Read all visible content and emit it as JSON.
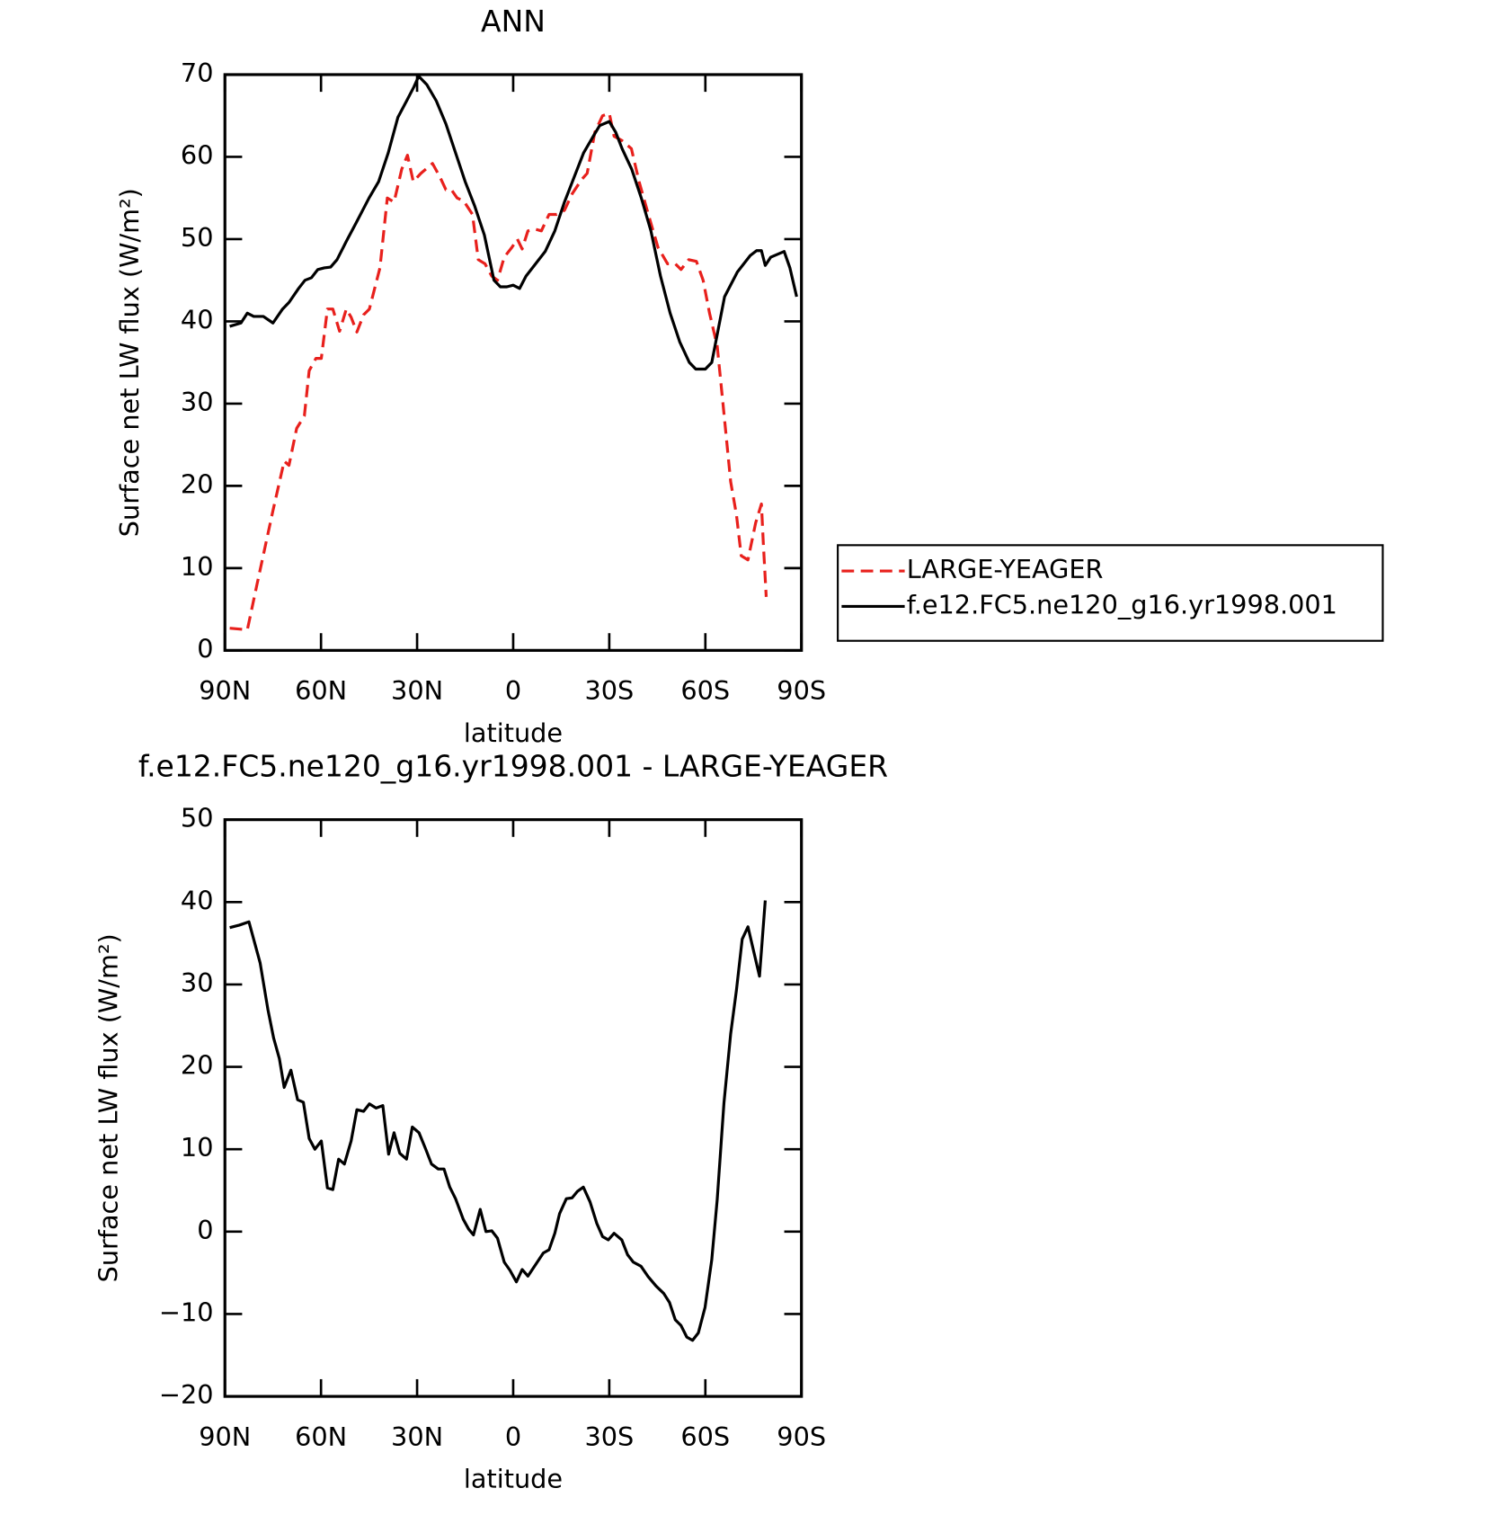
{
  "chart_data": [
    {
      "type": "line",
      "title": "ANN",
      "x_label": "latitude",
      "y_label": "Surface net LW flux (W/m²)",
      "xlim": [
        90,
        -90
      ],
      "xticks": [
        {
          "value": 90,
          "label": "90N"
        },
        {
          "value": 60,
          "label": "60N"
        },
        {
          "value": 30,
          "label": "30N"
        },
        0,
        {
          "value": -30,
          "label": "30S"
        },
        {
          "value": -60,
          "label": "60S"
        },
        {
          "value": -90,
          "label": "90S"
        }
      ],
      "ylim": [
        0,
        70
      ],
      "yticks": [
        0,
        10,
        20,
        30,
        40,
        50,
        60,
        70
      ],
      "legend": "right",
      "series": [
        {
          "name": "LARGE-YEAGER",
          "color": "#e8201c",
          "line_style": "dashed",
          "x": [
            88.5,
            83,
            80,
            75,
            71.5,
            70,
            67.6,
            65.2,
            63.7,
            61.6,
            59.9,
            58,
            56.3,
            54.2,
            52.1,
            50.6,
            48.8,
            46.7,
            44.9,
            41.6,
            39.3,
            37.2,
            34.8,
            33,
            31.2,
            28.8,
            25.2,
            22.8,
            21,
            19.3,
            17.5,
            15.4,
            12.7,
            10.9,
            8.8,
            6.7,
            4.9,
            2.8,
            0.4,
            -1.3,
            -2.8,
            -4.6,
            -7,
            -8.8,
            -11.2,
            -13.6,
            -16,
            -18.4,
            -21.3,
            -23.1,
            -25.5,
            -27.9,
            -30,
            -31.5,
            -33.9,
            -36.9,
            -39.3,
            -42.2,
            -45.2,
            -48.2,
            -50.6,
            -52.4,
            -54.8,
            -57.2,
            -59.3,
            -61.3,
            -63.7,
            -65.5,
            -67.9,
            -69.7,
            -71.2,
            -73.3,
            -75.7,
            -77.5,
            -78.1,
            -79
          ],
          "values": [
            2.7,
            2.5,
            8,
            17,
            23,
            22.5,
            27,
            28.5,
            34,
            35.5,
            35.5,
            41.5,
            41.5,
            38.8,
            41.5,
            40.5,
            38.7,
            40.8,
            41.5,
            46.5,
            55,
            54.5,
            58.5,
            60.2,
            57,
            58,
            59.2,
            57.5,
            56,
            56,
            55,
            54.6,
            53,
            47.5,
            47,
            45.5,
            45,
            47.8,
            49,
            50,
            48.8,
            51,
            51.2,
            51,
            53,
            53,
            53.5,
            55.5,
            57.2,
            58,
            63,
            65,
            65.3,
            62.5,
            62,
            61,
            57,
            53,
            49,
            47,
            47,
            46.3,
            47.5,
            47.3,
            45,
            41,
            37,
            30,
            20.5,
            16.5,
            11.5,
            11,
            15.5,
            17.8,
            13,
            6.5
          ]
        },
        {
          "name": "f.e12.FC5.ne120_g16.yr1998.001",
          "color": "#000000",
          "line_style": "solid",
          "x": [
            88.5,
            85,
            83,
            81,
            78,
            75,
            72,
            70,
            67,
            65,
            63,
            61,
            59,
            57,
            55,
            52,
            49,
            45,
            42,
            39,
            36,
            33,
            31,
            29.5,
            27,
            24,
            21,
            18,
            15,
            12,
            9,
            6,
            4,
            2,
            0,
            -2,
            -4,
            -7,
            -10,
            -13,
            -16,
            -19,
            -22,
            -25,
            -27,
            -30,
            -32,
            -34,
            -37,
            -40,
            -43,
            -46,
            -49,
            -52,
            -55,
            -57,
            -60,
            -62,
            -66,
            -70,
            -74,
            -76,
            -77.5,
            -78.7,
            -80.4,
            -84.6,
            -86.4,
            -88.5
          ],
          "values": [
            39.4,
            39.8,
            41,
            40.6,
            40.6,
            39.8,
            41.5,
            42.3,
            44,
            45,
            45.3,
            46.3,
            46.5,
            46.6,
            47.5,
            49.8,
            52,
            55,
            57,
            60.5,
            64.8,
            67,
            68.5,
            69.8,
            68.8,
            66.8,
            64,
            60.5,
            57,
            54,
            50.5,
            45,
            44.2,
            44.2,
            44.4,
            44,
            45.5,
            47,
            48.5,
            51,
            54.5,
            57.5,
            60.5,
            62.5,
            63.8,
            64.3,
            63,
            61,
            58.5,
            55,
            51,
            45.5,
            41,
            37.5,
            35,
            34.2,
            34.2,
            35,
            43,
            46,
            48,
            48.6,
            48.6,
            46.8,
            47.8,
            48.5,
            46.5,
            43
          ]
        }
      ]
    },
    {
      "type": "line",
      "title": "f.e12.FC5.ne120_g16.yr1998.001 - LARGE-YEAGER",
      "x_label": "latitude",
      "y_label": "Surface net LW flux (W/m²)",
      "xlim": [
        90,
        -90
      ],
      "xticks": [
        {
          "value": 90,
          "label": "90N"
        },
        {
          "value": 60,
          "label": "60N"
        },
        {
          "value": 30,
          "label": "30N"
        },
        0,
        {
          "value": -30,
          "label": "30S"
        },
        {
          "value": -60,
          "label": "60S"
        },
        {
          "value": -90,
          "label": "90S"
        }
      ],
      "ylim": [
        -20,
        50
      ],
      "yticks": [
        {
          "value": -20,
          "label": "−20"
        },
        {
          "value": -10,
          "label": "−10"
        },
        0,
        10,
        20,
        30,
        40,
        50
      ],
      "series": [
        {
          "color": "#000000",
          "line_style": "solid",
          "x": [
            88.5,
            85.5,
            82.5,
            79,
            76.6,
            74.8,
            73,
            71.5,
            69.4,
            67.3,
            65.5,
            63.7,
            61.9,
            59.9,
            58,
            56.3,
            54.5,
            52.7,
            50.6,
            48.8,
            46.7,
            44.9,
            42.8,
            40.7,
            38.9,
            37.2,
            35.4,
            33.3,
            31.5,
            29.4,
            27.3,
            25.5,
            23.4,
            21.6,
            19.8,
            18,
            15.6,
            13.9,
            12.4,
            10.3,
            8.5,
            6.7,
            4.9,
            2.8,
            1,
            -1,
            -2.8,
            -4.6,
            -7,
            -9.4,
            -11.2,
            -13,
            -14.5,
            -16.6,
            -18.4,
            -20.1,
            -21.9,
            -24,
            -26.1,
            -27.9,
            -29.7,
            -31.5,
            -33.9,
            -35.7,
            -37.5,
            -39.9,
            -42.2,
            -44.6,
            -47,
            -48.8,
            -50.6,
            -52.4,
            -54.2,
            -56,
            -57.8,
            -59.9,
            -62,
            -63.7,
            -65.8,
            -67.9,
            -69.7,
            -71.5,
            -73.3,
            -75.1,
            -76.9,
            -78.7
          ],
          "values": [
            36.9,
            37.2,
            37.6,
            32.6,
            27,
            23.5,
            21,
            17.5,
            19.6,
            16,
            15.7,
            11.3,
            10,
            11,
            5.3,
            5.1,
            8.8,
            8.2,
            11,
            14.8,
            14.6,
            15.5,
            15,
            15.3,
            9.4,
            12,
            9.5,
            8.8,
            12.7,
            12,
            10,
            8.2,
            7.6,
            7.6,
            5.4,
            4,
            1.5,
            0.3,
            -0.4,
            2.7,
            0,
            0.1,
            -0.8,
            -3.7,
            -4.7,
            -6.1,
            -4.6,
            -5.4,
            -4,
            -2.6,
            -2.2,
            -0.2,
            2.2,
            4,
            4.1,
            4.9,
            5.4,
            3.6,
            1,
            -0.6,
            -1,
            -0.2,
            -1,
            -2.8,
            -3.7,
            -4.2,
            -5.5,
            -6.6,
            -7.5,
            -8.6,
            -10.7,
            -11.4,
            -12.8,
            -13.2,
            -12.3,
            -9.2,
            -3.4,
            3.9,
            15.6,
            24,
            29.3,
            35.5,
            37,
            34,
            31,
            40.2
          ]
        }
      ]
    }
  ]
}
